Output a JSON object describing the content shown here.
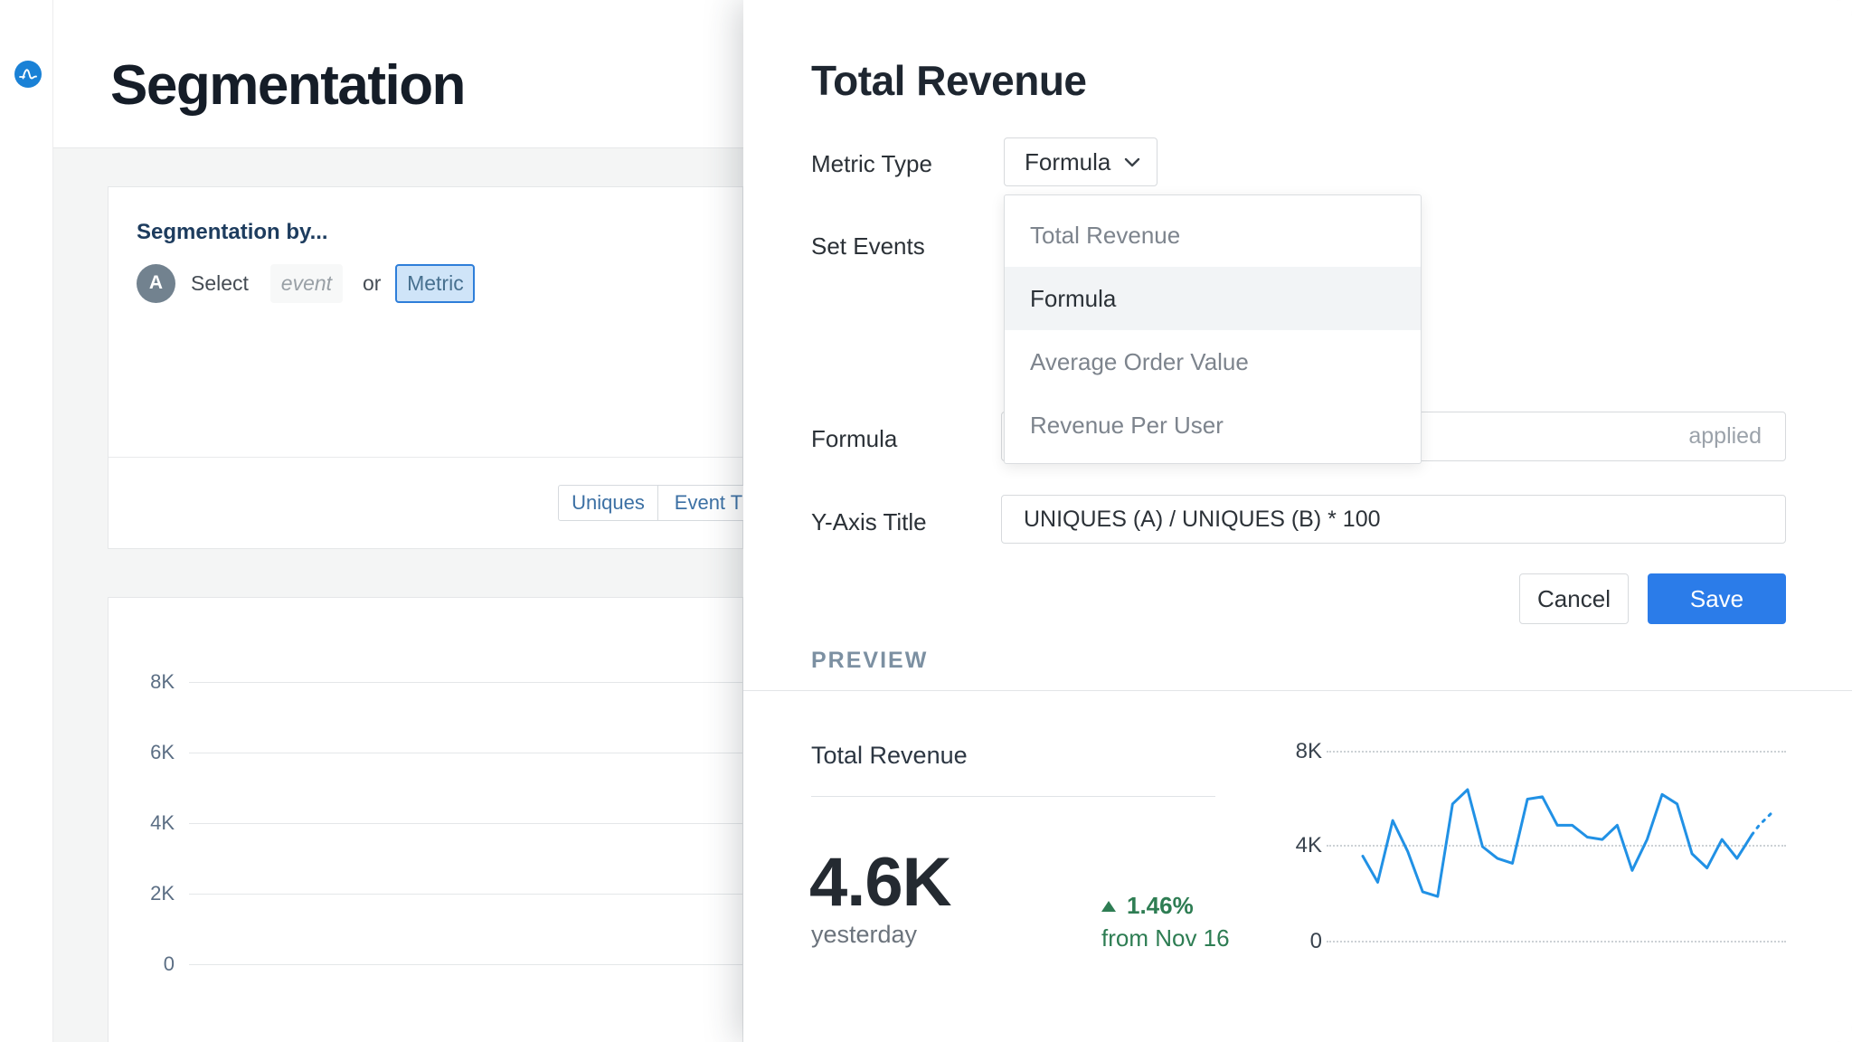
{
  "app": {
    "logo_color": "#1a81d6"
  },
  "page": {
    "title": "Segmentation"
  },
  "segment_card": {
    "heading": "Segmentation by...",
    "series_label": "A",
    "select_text": "Select",
    "event_placeholder": "event",
    "or_text": "or",
    "metric_button": "Metric",
    "tabs": [
      "Uniques",
      "Event T"
    ]
  },
  "bg_chart": {
    "yticks": [
      "8K",
      "6K",
      "4K",
      "2K",
      "0"
    ]
  },
  "modal": {
    "title": "Total Revenue",
    "metric_type_label": "Metric Type",
    "metric_type_value": "Formula",
    "set_events_label": "Set Events",
    "dropdown_options": [
      "Total Revenue",
      "Formula",
      "Average Order Value",
      "Revenue Per User"
    ],
    "dropdown_selected": "Formula",
    "formula_label": "Formula",
    "formula_applied": "applied",
    "y_axis_label": "Y-Axis Title",
    "y_axis_value": "UNIQUES (A) / UNIQUES (B) * 100",
    "cancel_label": "Cancel",
    "save_label": "Save",
    "preview_section_label": "PREVIEW"
  },
  "preview": {
    "metric_name": "Total Revenue",
    "value": "4.6K",
    "period": "yesterday",
    "delta": "1.46%",
    "delta_direction": "up",
    "delta_from": "from Nov 16",
    "positive_color": "#2e7d53"
  },
  "chart_data": {
    "type": "line",
    "title": "Total Revenue preview sparkline",
    "ylabel": "",
    "xlabel": "",
    "ylim": [
      0,
      8000
    ],
    "yticks": [
      "8K",
      "4K",
      "0"
    ],
    "grid": "dotted-horizontal",
    "legend": "none",
    "line_color": "#2191e5",
    "values_k": [
      3.6,
      2.5,
      5.1,
      3.8,
      2.1,
      1.9,
      5.8,
      6.4,
      4.0,
      3.5,
      3.3,
      6.0,
      6.1,
      4.9,
      4.9,
      4.4,
      4.3,
      4.9,
      3.0,
      4.3,
      6.2,
      5.8,
      3.7,
      3.1,
      4.3,
      3.5,
      4.5
    ],
    "forecast_values_k": [
      4.9,
      5.2,
      5.5
    ]
  }
}
